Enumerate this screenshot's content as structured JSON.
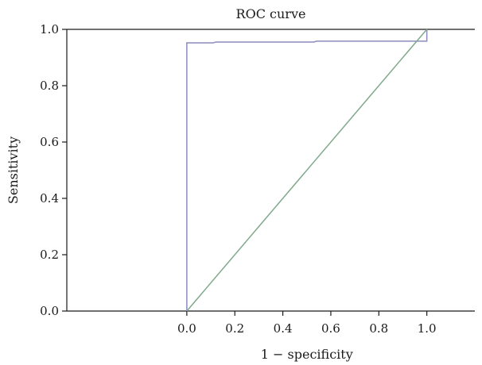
{
  "chart_data": {
    "type": "line",
    "title": "ROC curve",
    "xlabel": "1 − specificity",
    "ylabel": "Sensitivity",
    "xlim": [
      -0.5,
      1.2
    ],
    "ylim": [
      0,
      1
    ],
    "xticks": [
      0.0,
      0.2,
      0.4,
      0.6,
      0.8,
      1.0
    ],
    "xtick_labels": [
      "0.0",
      "0.2",
      "0.4",
      "0.6",
      "0.8",
      "1.0"
    ],
    "yticks": [
      0.0,
      0.2,
      0.4,
      0.6,
      0.8,
      1.0
    ],
    "ytick_labels": [
      "0.0",
      "0.2",
      "0.4",
      "0.6",
      "0.8",
      "1.0"
    ],
    "grid": false,
    "legend": "none",
    "series": [
      {
        "color": "#8b8bbf",
        "x": [
          0.0,
          0.0,
          0.11,
          0.12,
          0.53,
          0.54,
          1.0,
          1.0
        ],
        "y": [
          0.0,
          0.952,
          0.952,
          0.955,
          0.955,
          0.958,
          0.958,
          1.0
        ]
      },
      {
        "color": "#7fa98a",
        "x": [
          0.0,
          1.0
        ],
        "y": [
          0.0,
          1.0
        ]
      }
    ]
  }
}
